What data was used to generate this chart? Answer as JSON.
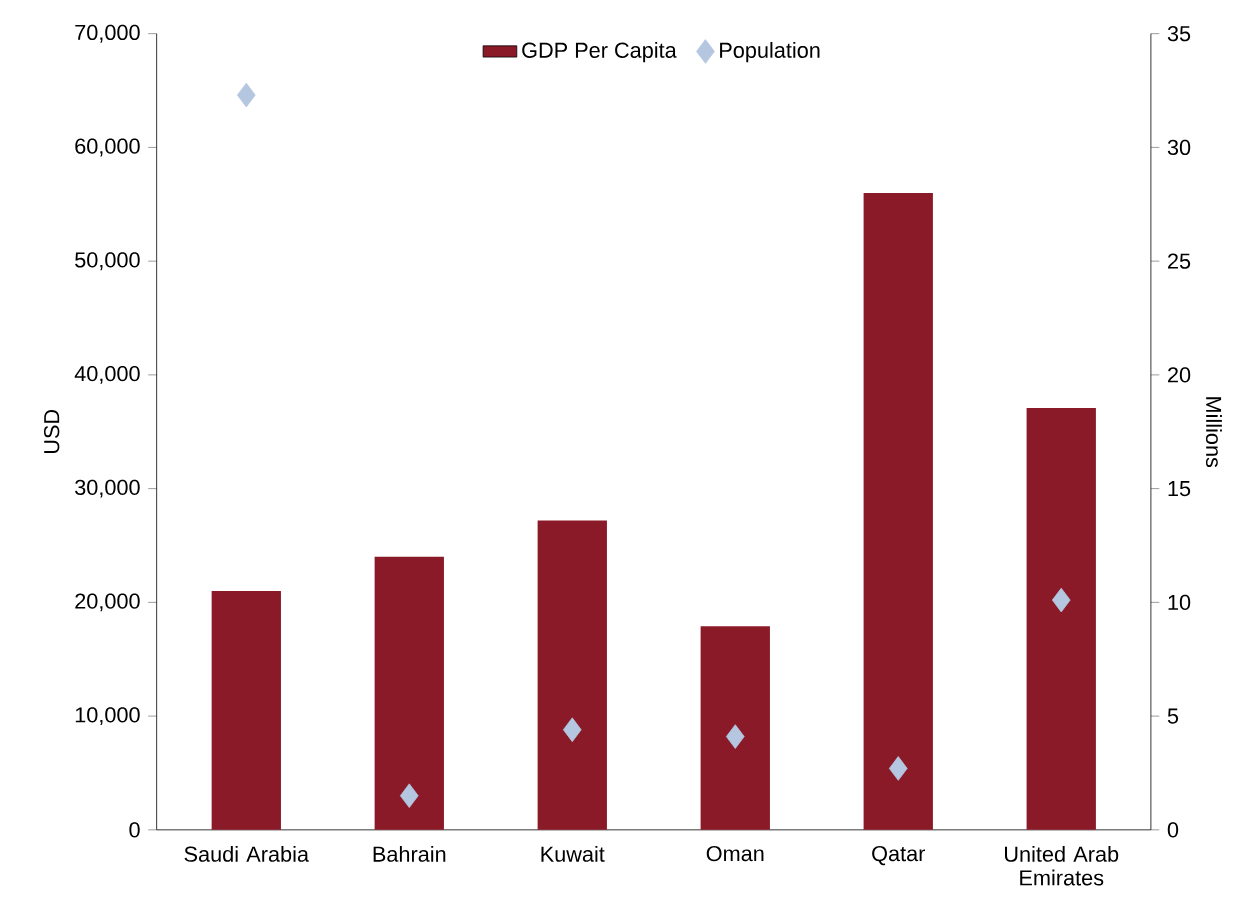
{
  "chart_data": {
    "type": "bar",
    "categories": [
      "Saudi Arabia",
      "Bahrain",
      "Kuwait",
      "Oman",
      "Qatar",
      "United Arab Emirates"
    ],
    "series": [
      {
        "name": "GDP Per Capita",
        "color": "#8b1a28",
        "values": [
          21000,
          24000,
          27200,
          17900,
          56000,
          37100
        ]
      },
      {
        "name": "Population",
        "type": "scatter",
        "axis": "y2",
        "color": "#b4c6e0",
        "values": [
          32.3,
          1.5,
          4.4,
          4.1,
          2.7,
          10.1
        ]
      }
    ],
    "ylabel": "USD",
    "y2label": "Millions",
    "ylim": [
      0,
      70000
    ],
    "yticks": [
      {
        "value": 0,
        "label": "0"
      },
      {
        "value": 10000,
        "label": "10,000"
      },
      {
        "value": 20000,
        "label": "20,000"
      },
      {
        "value": 30000,
        "label": "30,000"
      },
      {
        "value": 40000,
        "label": "40,000"
      },
      {
        "value": 50000,
        "label": "50,000"
      },
      {
        "value": 60000,
        "label": "60,000"
      },
      {
        "value": 70000,
        "label": "70,000"
      }
    ],
    "y2lim": [
      0,
      35
    ],
    "y2ticks": [
      0,
      5,
      10,
      15,
      20,
      25,
      30,
      35
    ],
    "marker": "diamond",
    "legend": "top"
  }
}
